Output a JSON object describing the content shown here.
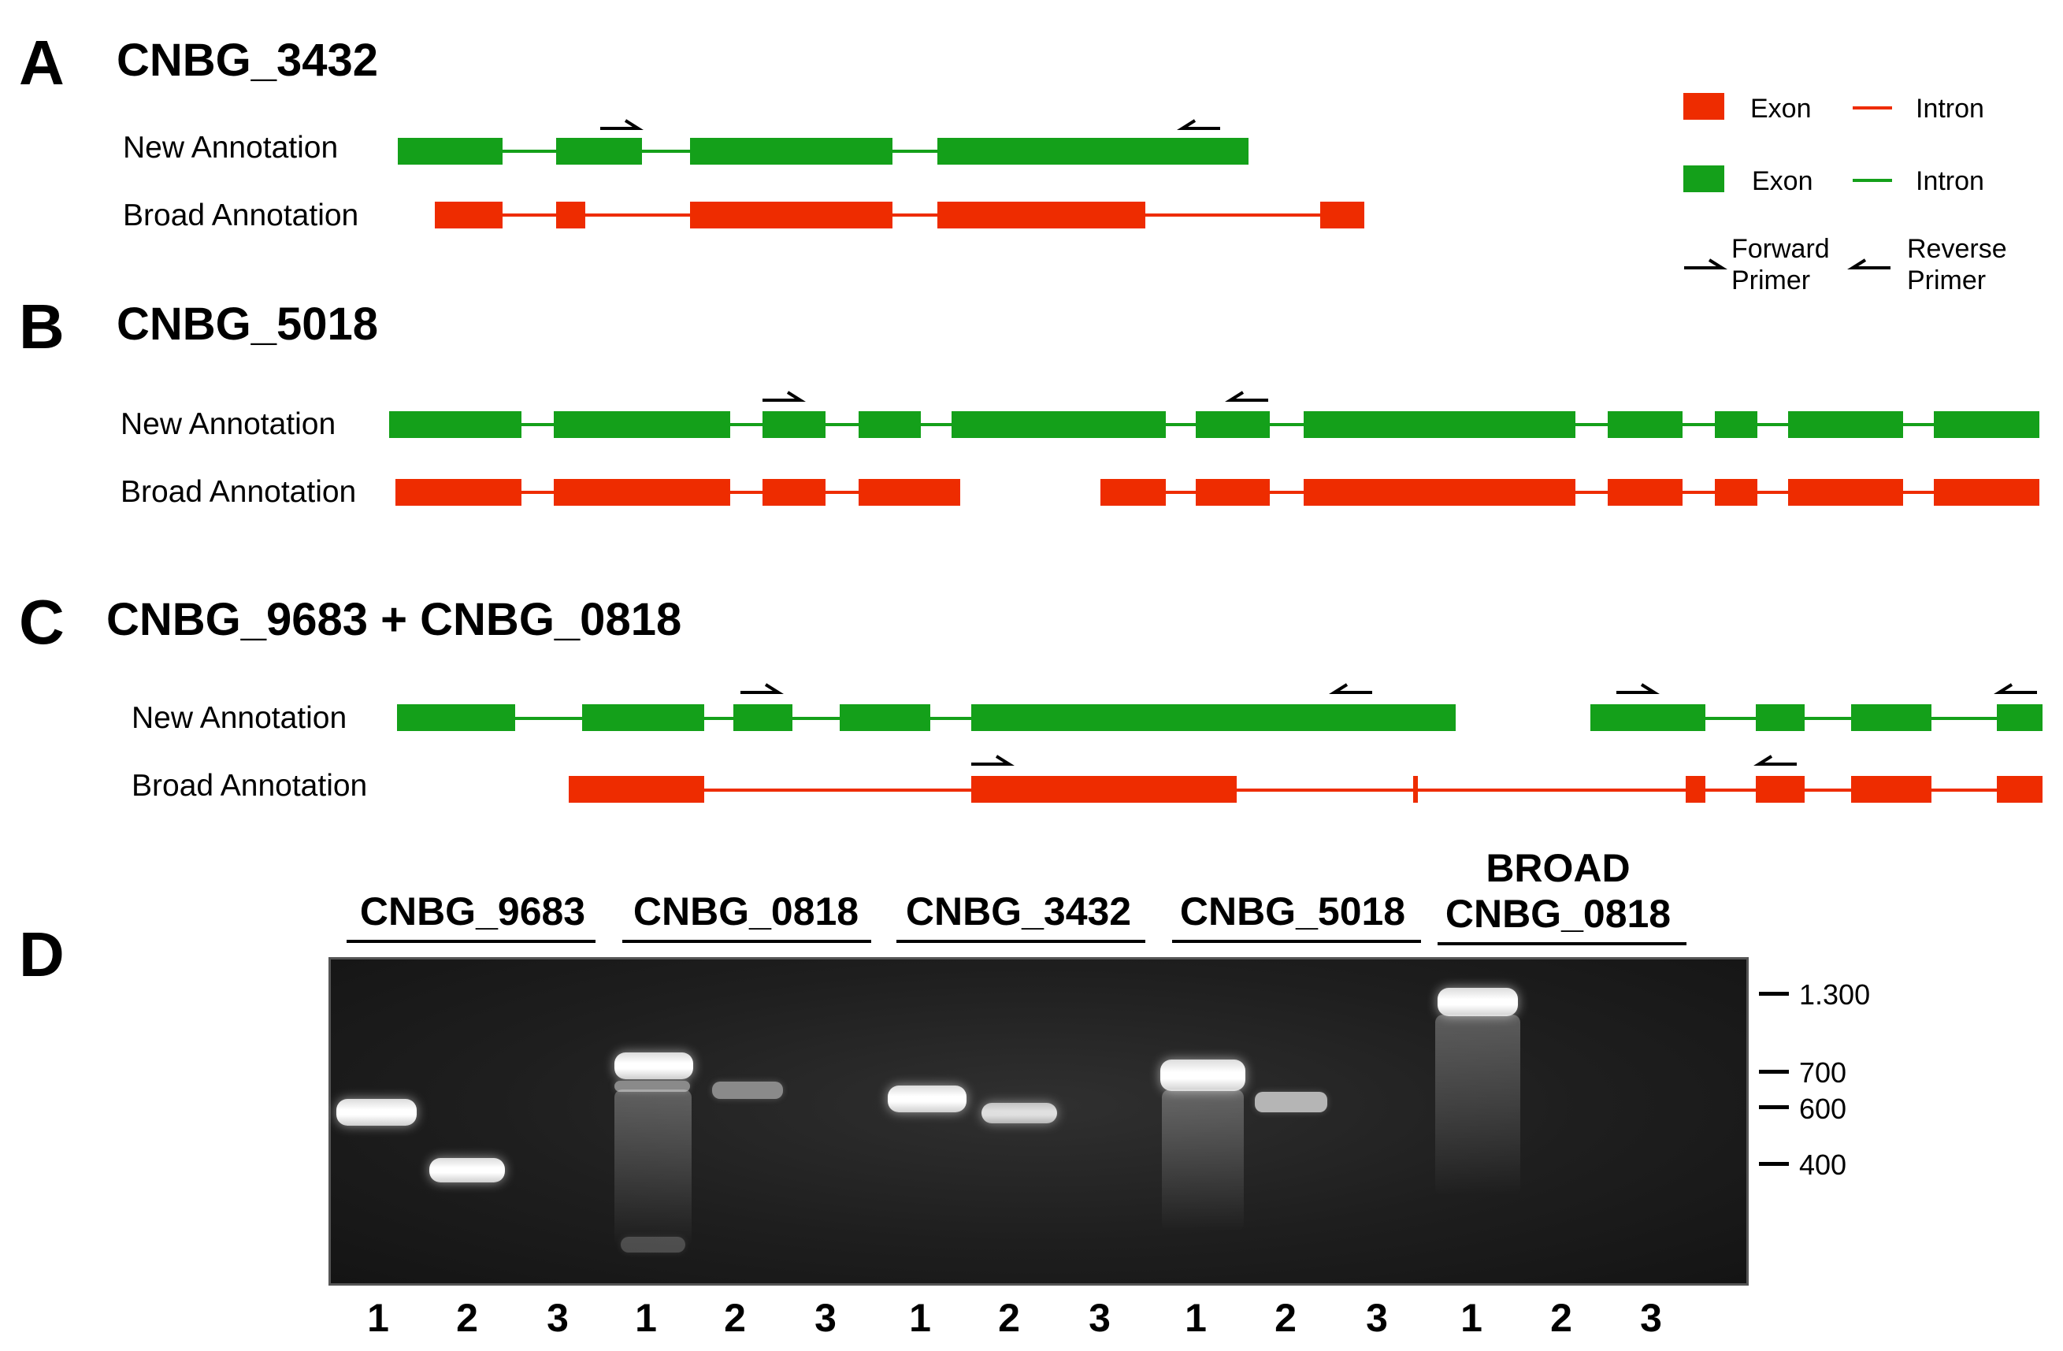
{
  "panels": {
    "a": {
      "letter": "A",
      "title": "CNBG_3432"
    },
    "b": {
      "letter": "B",
      "title": "CNBG_5018"
    },
    "c": {
      "letter": "C",
      "title": "CNBG_9683 + CNBG_0818"
    },
    "d": {
      "letter": "D"
    }
  },
  "tracks": {
    "new_label": "New Annotation",
    "broad_label": "Broad Annotation"
  },
  "legend": {
    "red_exon": "Exon",
    "red_intron": "Intron",
    "green_exon": "Exon",
    "green_intron": "Intron",
    "forward_primer": "Forward Primer",
    "reverse_primer": "Reverse Primer",
    "colors": {
      "broad": "#ee2c00",
      "new": "#14a01a"
    }
  },
  "gel": {
    "groups": [
      {
        "label": "CNBG_9683"
      },
      {
        "label": "CNBG_0818"
      },
      {
        "label": "CNBG_3432"
      },
      {
        "label": "CNBG_5018"
      },
      {
        "label_line1": "BROAD",
        "label_line2": "CNBG_0818"
      }
    ],
    "lanes": [
      "1",
      "2",
      "3",
      "1",
      "2",
      "3",
      "1",
      "2",
      "3",
      "1",
      "2",
      "3",
      "1",
      "2",
      "3"
    ],
    "markers": [
      "1.300",
      "700",
      "600",
      "400"
    ]
  }
}
